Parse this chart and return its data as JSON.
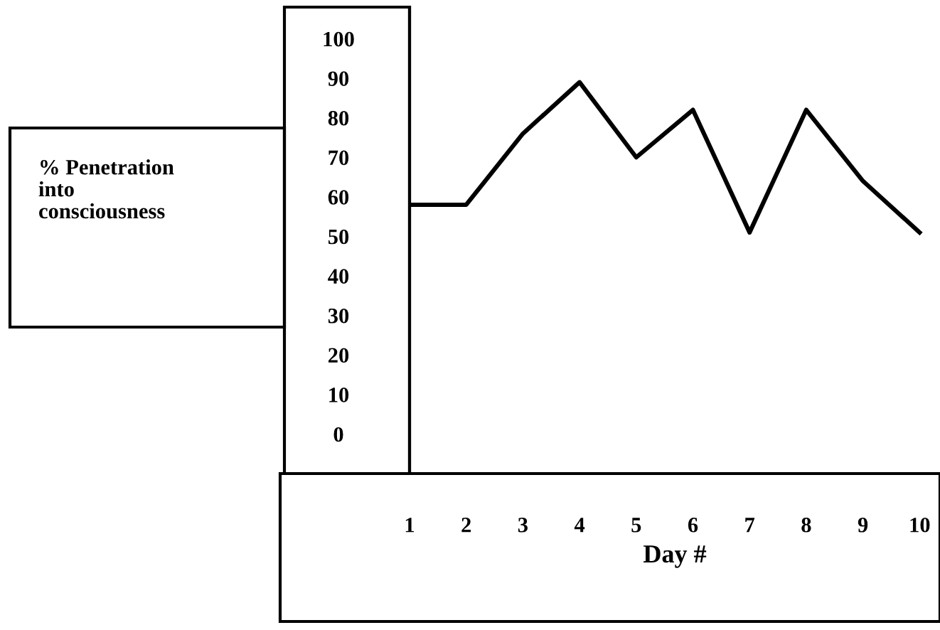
{
  "chart_data": {
    "type": "line",
    "categories": [
      "1",
      "2",
      "3",
      "4",
      "5",
      "6",
      "7",
      "8",
      "9",
      "10"
    ],
    "values": [
      58,
      58,
      76,
      89,
      70,
      82,
      51,
      82,
      64,
      51
    ],
    "color": "#000000",
    "ylim": [
      -10,
      108
    ],
    "yticks": [
      0,
      10,
      20,
      30,
      40,
      50,
      60,
      70,
      80,
      90,
      100
    ],
    "xlabel": "Day #",
    "annotations": [
      "% Penetration\ninto\nconsciousness"
    ],
    "grid": false,
    "marker": "none",
    "line_style": "solid"
  }
}
